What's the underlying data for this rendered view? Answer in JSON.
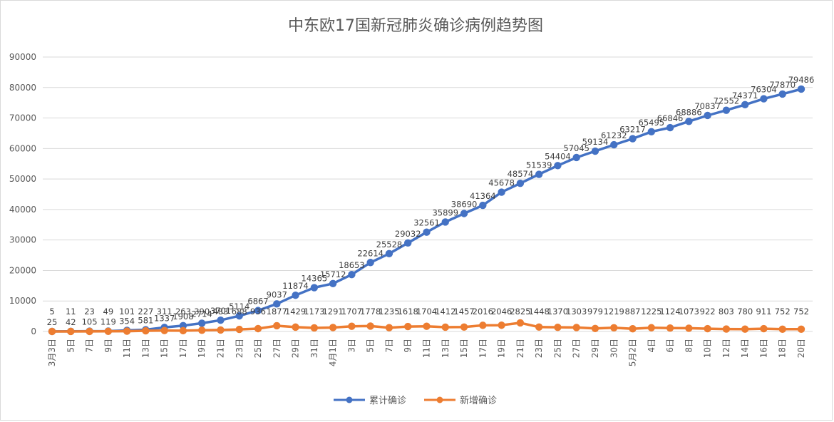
{
  "chart_data": {
    "type": "line",
    "title": "中东欧17国新冠肺炎确诊病例趋势图",
    "ylim": [
      0,
      90000
    ],
    "yticks": [
      "0",
      "10000",
      "20000",
      "30000",
      "40000",
      "50000",
      "60000",
      "70000",
      "80000",
      "90000"
    ],
    "grid": true,
    "legend_position": "bottom",
    "categories": [
      "3月3日",
      "5日",
      "7日",
      "9日",
      "11日",
      "13日",
      "15日",
      "17日",
      "19日",
      "21日",
      "23日",
      "25日",
      "27日",
      "29日",
      "31日",
      "4月1日",
      "3日",
      "5日",
      "7日",
      "9日",
      "11日",
      "13日",
      "15日",
      "17日",
      "19日",
      "21日",
      "23日",
      "25日",
      "27日",
      "29日",
      "30日",
      "5月2日",
      "4日",
      "6日",
      "8日",
      "10日",
      "12日",
      "14日",
      "16日",
      "18日",
      "20日"
    ],
    "series": [
      {
        "name": "累计确诊",
        "color": "#4472C4",
        "values": [
          25,
          42,
          105,
          119,
          354,
          581,
          1337,
          1908,
          2714,
          3701,
          5114,
          6867,
          9037,
          11874,
          14365,
          15712,
          18653,
          22614,
          25528,
          29032,
          32561,
          35899,
          38690,
          41364,
          45678,
          48574,
          51539,
          54404,
          57045,
          59134,
          61232,
          63217,
          65495,
          66846,
          68886,
          70837,
          72552,
          74371,
          76304,
          77870,
          79486
        ],
        "labels": [
          "25",
          "42",
          "105",
          "119",
          "354",
          "581",
          "1337",
          "1908",
          "2714",
          "3701",
          "5114",
          "6867",
          "9037",
          "11874",
          "14365",
          "15712",
          "18653",
          "22614",
          "25528",
          "29032",
          "32561",
          "35899",
          "38690",
          "41364",
          "45678",
          "48574",
          "51539",
          "54404",
          "57045",
          "59134",
          "61232",
          "63217",
          "65495",
          "66846",
          "68886",
          "70837",
          "72552",
          "74371",
          "76304",
          "77870",
          "79486"
        ]
      },
      {
        "name": "新增确诊",
        "color": "#ED7D31",
        "values": [
          5,
          11,
          23,
          49,
          101,
          227,
          311,
          263,
          390,
          483,
          688,
          936,
          1877,
          1429,
          1173,
          1291,
          1707,
          1778,
          1235,
          1618,
          1704,
          1412,
          1457,
          2016,
          2046,
          2825,
          1448,
          1370,
          1303,
          979,
          1219,
          887,
          1225,
          1124,
          1073,
          922,
          803,
          780,
          911,
          752,
          752
        ],
        "labels": [
          "5",
          "11",
          "23",
          "49",
          "101",
          "227",
          "311",
          "263",
          "390",
          "483",
          "688",
          "936",
          "1877",
          "1429",
          "1173",
          "1291",
          "1707",
          "1778",
          "1235",
          "1618",
          "1704",
          "1412",
          "1457",
          "2016",
          "2046",
          "2825",
          "1448",
          "1370",
          "1303",
          "979",
          "1219",
          "887",
          "1225",
          "1124",
          "1073",
          "922",
          "803",
          "780",
          "911",
          "752",
          "752"
        ]
      }
    ]
  }
}
